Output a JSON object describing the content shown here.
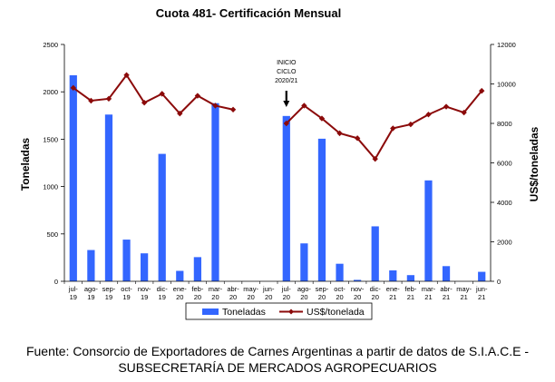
{
  "chart_data": {
    "type": "bar+line",
    "title": "Cuota 481-  Certificación Mensual",
    "ylabel_left": "Toneladas",
    "ylabel_right": "US$/toneladas",
    "ylim_left": [
      0,
      2500
    ],
    "ylim_right": [
      0,
      12000
    ],
    "yticks_left": [
      "0",
      "500",
      "1000",
      "1500",
      "2000",
      "2500"
    ],
    "yticks_right": [
      "0",
      "2000",
      "4000",
      "6000",
      "8000",
      "10000",
      "12000"
    ],
    "categories": [
      [
        "jul-",
        "19"
      ],
      [
        "ago-",
        "19"
      ],
      [
        "sep-",
        "19"
      ],
      [
        "oct-",
        "19"
      ],
      [
        "nov-",
        "19"
      ],
      [
        "dic-",
        "19"
      ],
      [
        "ene-",
        "20"
      ],
      [
        "feb-",
        "20"
      ],
      [
        "mar-",
        "20"
      ],
      [
        "abr-",
        "20"
      ],
      [
        "may-",
        "20"
      ],
      [
        "jun-",
        "20"
      ],
      [
        "jul-",
        "20"
      ],
      [
        "ago-",
        "20"
      ],
      [
        "sep-",
        "20"
      ],
      [
        "oct-",
        "20"
      ],
      [
        "nov-",
        "20"
      ],
      [
        "dic-",
        "20"
      ],
      [
        "ene-",
        "21"
      ],
      [
        "feb-",
        "21"
      ],
      [
        "mar-",
        "21"
      ],
      [
        "abr-",
        "21"
      ],
      [
        "may-",
        "21"
      ],
      [
        "jun-",
        "21"
      ]
    ],
    "series": [
      {
        "name": "Toneladas",
        "type": "bar",
        "axis": "left",
        "color": "#3366ff",
        "values": [
          2175,
          330,
          1760,
          440,
          295,
          1345,
          110,
          255,
          1880,
          0,
          0,
          0,
          1745,
          400,
          1505,
          185,
          15,
          580,
          115,
          65,
          1065,
          160,
          0,
          100
        ]
      },
      {
        "name": "US$/tonelada",
        "type": "line",
        "axis": "right",
        "color": "#8b0a0a",
        "values": [
          9800,
          9150,
          9250,
          10450,
          9050,
          9500,
          8500,
          9400,
          8900,
          8700,
          null,
          null,
          8000,
          8900,
          8250,
          7500,
          7250,
          6200,
          7750,
          7950,
          8450,
          8850,
          8550,
          9650
        ]
      }
    ],
    "annotation": {
      "lines": [
        "INICIO",
        "CICLO",
        "2020/21"
      ],
      "category_index": 12
    },
    "legend_position": "bottom"
  },
  "source_lines": [
    "Fuente: Consorcio de Exportadores de Carnes Argentinas a partir de datos de S.I.A.C.E -",
    "SUBSECRETARÍA DE MERCADOS AGROPECUARIOS"
  ]
}
